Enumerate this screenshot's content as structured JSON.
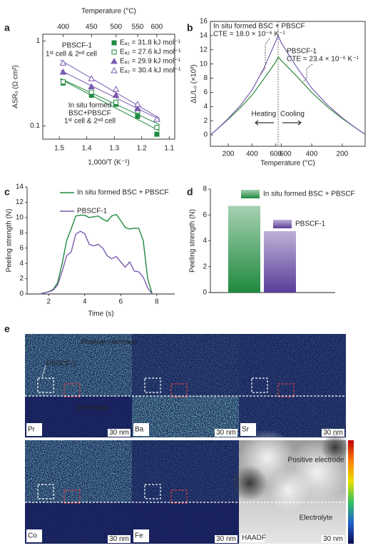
{
  "chart_data": [
    {
      "panel": "a",
      "type": "scatter",
      "top_x_label": "Temperature (°C)",
      "x_label": "1,000/T (K⁻¹)",
      "y_label": "ASRₒ (Ω cm²)",
      "x": [
        1.486,
        1.383,
        1.294,
        1.215,
        1.145
      ],
      "xlim": [
        1.56,
        1.08
      ],
      "xticks": [
        1.5,
        1.4,
        1.3,
        1.2,
        1.1
      ],
      "top_xticks": [
        400,
        450,
        500,
        550,
        600
      ],
      "log_y": true,
      "ylim": [
        0.07,
        1.2
      ],
      "yticks": [
        0.1,
        1
      ],
      "series": [
        {
          "name": "Eₐ₁ = 31.8 kJ mol⁻¹",
          "color": "#1f8a3e",
          "marker": "square",
          "filled": true,
          "values": [
            0.32,
            0.23,
            0.18,
            0.13,
            0.08
          ]
        },
        {
          "name": "Eₐ₂ = 27.6 kJ mol⁻¹",
          "color": "#1f8a3e",
          "marker": "square",
          "filled": false,
          "values": [
            0.33,
            0.25,
            0.19,
            0.15,
            0.096
          ]
        },
        {
          "name": "Eₐ₁ = 29.9 kJ mol⁻¹",
          "color": "#7a5bb0",
          "marker": "triangle",
          "filled": true,
          "values": [
            0.43,
            0.29,
            0.23,
            0.16,
            0.12
          ]
        },
        {
          "name": "Eₐ₂ = 30.4 kJ mol⁻¹",
          "color": "#7a5bb0",
          "marker": "triangle",
          "filled": false,
          "values": [
            0.55,
            0.36,
            0.27,
            0.18,
            0.12
          ]
        }
      ],
      "annotations": [
        "PBSCF-1",
        "1ˢᵗ cell & 2ⁿᵈ cell",
        "In situ formed",
        "BSC+PBSCF",
        "1ˢᵗ cell & 2ⁿᵈ cell"
      ]
    },
    {
      "panel": "b",
      "type": "line",
      "x_label": "Temperature (°C)",
      "y_label": "ΔL/L₀ (×10³)",
      "ylim": [
        -1.6,
        16
      ],
      "yticks": [
        0,
        2,
        4,
        6,
        8,
        10,
        12,
        14,
        16
      ],
      "xlim": [
        50,
        620
      ],
      "heating_xticks": [
        200,
        400,
        600
      ],
      "cooling_xticks": [
        600,
        400,
        200
      ],
      "x_heating": [
        50,
        100,
        200,
        300,
        400,
        500,
        600,
        620
      ],
      "x_cooling": [
        620,
        600,
        500,
        400,
        300,
        200,
        100,
        50
      ],
      "series": [
        {
          "name": "In situ formed BSC + PBSCF",
          "color": "#2e8b3e",
          "heating": [
            0,
            0.7,
            2.2,
            3.8,
            5.6,
            7.9,
            10.3,
            11.0
          ],
          "cooling": [
            11.0,
            10.5,
            8.3,
            6.0,
            4.0,
            2.3,
            0.8,
            0.1
          ]
        },
        {
          "name": "PBSCF-1",
          "color": "#7a5bb0",
          "heating": [
            0,
            0.7,
            2.3,
            4.1,
            6.3,
            9.4,
            13.2,
            14.0
          ],
          "cooling": [
            14.0,
            13.0,
            9.6,
            6.6,
            4.3,
            2.4,
            0.8,
            0.1
          ]
        }
      ],
      "annotations": [
        "CTE = 18.0 × 10⁻⁶ K⁻¹",
        "CTE = 23.4 × 10⁻⁶ K⁻¹",
        "Heating",
        "Cooling"
      ]
    },
    {
      "panel": "c",
      "type": "line",
      "x_label": "Time (s)",
      "y_label": "Peeling strength (N)",
      "x": [
        1.5,
        2.0,
        2.25,
        2.5,
        2.75,
        3.0,
        3.25,
        3.5,
        3.75,
        4.0,
        4.25,
        4.5,
        4.75,
        5.0,
        5.25,
        5.5,
        5.75,
        6.0,
        6.25,
        6.5,
        6.75,
        7.0,
        7.25,
        7.5,
        7.75
      ],
      "xlim": [
        0.8,
        9
      ],
      "xticks": [
        2,
        4,
        6,
        8
      ],
      "ylim": [
        0,
        14
      ],
      "yticks": [
        0,
        2,
        4,
        6,
        8,
        10,
        12,
        14
      ],
      "series": [
        {
          "name": "In situ formed BSC + PBSCF",
          "color": "#1f8a3e",
          "values": [
            0,
            0.3,
            0.6,
            1.5,
            4,
            7,
            8.5,
            10.2,
            10.3,
            10.3,
            10.0,
            10.1,
            10.2,
            9.8,
            9.5,
            10.2,
            10.4,
            9.6,
            8.7,
            8.5,
            8.6,
            8.6,
            7.0,
            2,
            0
          ]
        },
        {
          "name": "PBSCF-1",
          "color": "#7a5bb0",
          "values": [
            0,
            0.3,
            0.5,
            1.2,
            3,
            5,
            5.5,
            7.8,
            8.2,
            7.9,
            6.5,
            6.3,
            6.5,
            6.0,
            5.0,
            4.6,
            4.9,
            4.2,
            3.5,
            4.2,
            3.0,
            2.9,
            2.2,
            0.8,
            0
          ]
        }
      ]
    },
    {
      "panel": "d",
      "type": "bar",
      "y_label": "Peeling strength (N)",
      "categories": [
        "In situ formed BSC + PBSCF",
        "PBSCF-1"
      ],
      "values": [
        6.7,
        4.75
      ],
      "colors": [
        "#1f8a3e",
        "#5b3d99"
      ],
      "ylim": [
        0,
        8
      ],
      "yticks": [
        0,
        2,
        4,
        6,
        8
      ]
    }
  ],
  "panel_e": {
    "label": "e",
    "inset_label": "PBSCF-2",
    "positive_electrode": "Positive electrode",
    "electrolyte": "Electrolyte",
    "tiles": [
      {
        "element": "Pr",
        "scale_bar": "30 nm"
      },
      {
        "element": "Ba",
        "scale_bar": "30 nm"
      },
      {
        "element": "Sr",
        "scale_bar": "30 nm"
      },
      {
        "element": "Co",
        "scale_bar": "30 nm"
      },
      {
        "element": "Fe",
        "scale_bar": "30 nm"
      },
      {
        "element": "HAADF",
        "scale_bar": "30 nm"
      }
    ],
    "haadf_labels": [
      "Positive electrode",
      "Electrolyte"
    ]
  }
}
